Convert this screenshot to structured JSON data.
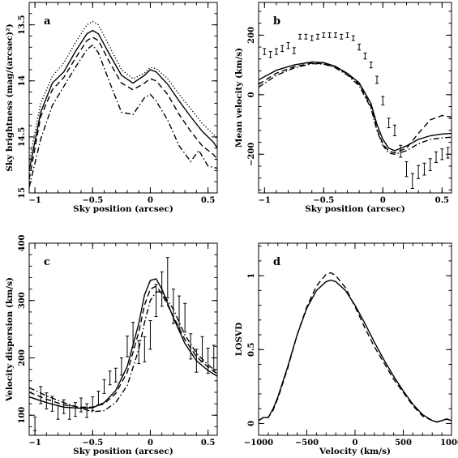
{
  "chart_data": [
    {
      "panel": "a",
      "type": "line",
      "xlabel": "Sky position (arcsec)",
      "ylabel": "Sky brightness (mag/(arcsec)²)",
      "xlim": [
        -1.05,
        0.58
      ],
      "ylim": [
        15.0,
        13.3
      ],
      "y_reversed": true,
      "xticks": [
        -1,
        -0.5,
        0,
        0.5
      ],
      "yticks": [
        13.5,
        14,
        14.5,
        15
      ],
      "xticklabels": [
        "−1",
        "−0.5",
        "0",
        "0.5"
      ],
      "yticklabels": [
        "13.5",
        "14",
        "14.5",
        "15"
      ],
      "series": [
        {
          "style": "solid",
          "x": [
            -1.05,
            -0.95,
            -0.85,
            -0.75,
            -0.65,
            -0.55,
            -0.5,
            -0.45,
            -0.35,
            -0.25,
            -0.15,
            -0.05,
            0,
            0.05,
            0.15,
            0.25,
            0.35,
            0.45,
            0.55,
            0.58
          ],
          "y": [
            14.8,
            14.28,
            14.02,
            13.92,
            13.74,
            13.58,
            13.55,
            13.58,
            13.77,
            13.95,
            14.02,
            13.95,
            13.9,
            13.92,
            14.03,
            14.18,
            14.32,
            14.45,
            14.55,
            14.6
          ]
        },
        {
          "style": "dotted",
          "x": [
            -1.05,
            -0.95,
            -0.85,
            -0.75,
            -0.65,
            -0.55,
            -0.5,
            -0.45,
            -0.35,
            -0.25,
            -0.15,
            -0.05,
            0,
            0.05,
            0.15,
            0.25,
            0.35,
            0.45,
            0.55,
            0.58
          ],
          "y": [
            14.72,
            14.2,
            13.96,
            13.84,
            13.66,
            13.5,
            13.47,
            13.5,
            13.7,
            13.9,
            13.98,
            13.93,
            13.88,
            13.89,
            13.98,
            14.12,
            14.25,
            14.38,
            14.48,
            14.52
          ]
        },
        {
          "style": "dashed",
          "x": [
            -1.05,
            -0.95,
            -0.85,
            -0.75,
            -0.65,
            -0.55,
            -0.5,
            -0.45,
            -0.35,
            -0.25,
            -0.15,
            -0.05,
            0,
            0.05,
            0.15,
            0.25,
            0.35,
            0.45,
            0.55,
            0.58
          ],
          "y": [
            14.88,
            14.32,
            14.08,
            13.97,
            13.8,
            13.64,
            13.61,
            13.64,
            13.84,
            14.02,
            14.08,
            14.02,
            13.98,
            14.0,
            14.12,
            14.3,
            14.45,
            14.58,
            14.66,
            14.7
          ]
        },
        {
          "style": "dashdot",
          "x": [
            -1.05,
            -0.95,
            -0.85,
            -0.75,
            -0.65,
            -0.55,
            -0.5,
            -0.45,
            -0.35,
            -0.25,
            -0.15,
            -0.05,
            0,
            0.05,
            0.15,
            0.25,
            0.35,
            0.42,
            0.5,
            0.58
          ],
          "y": [
            14.95,
            14.52,
            14.22,
            14.05,
            13.88,
            13.72,
            13.68,
            13.75,
            14.02,
            14.28,
            14.3,
            14.15,
            14.12,
            14.18,
            14.35,
            14.58,
            14.72,
            14.62,
            14.76,
            14.78
          ]
        }
      ]
    },
    {
      "panel": "b",
      "type": "line",
      "xlabel": "Sky position (arcsec)",
      "ylabel": "Mean velocity (km/s)",
      "xlim": [
        -1.05,
        0.58
      ],
      "ylim": [
        -330,
        310
      ],
      "xticks": [
        -1,
        -0.5,
        0,
        0.5
      ],
      "yticks": [
        -200,
        0,
        200
      ],
      "xticklabels": [
        "−1",
        "−0.5",
        "0",
        "0.5"
      ],
      "yticklabels": [
        "−200",
        "0",
        "200"
      ],
      "series": [
        {
          "style": "solid",
          "x": [
            -1.05,
            -0.9,
            -0.75,
            -0.6,
            -0.5,
            -0.4,
            -0.3,
            -0.2,
            -0.1,
            -0.05,
            0,
            0.05,
            0.1,
            0.2,
            0.3,
            0.4,
            0.5,
            0.58
          ],
          "y": [
            50,
            82,
            100,
            110,
            108,
            95,
            72,
            40,
            -30,
            -100,
            -150,
            -180,
            -188,
            -172,
            -150,
            -138,
            -132,
            -130
          ]
        },
        {
          "style": "dashed",
          "x": [
            -1.05,
            -0.9,
            -0.75,
            -0.6,
            -0.5,
            -0.4,
            -0.3,
            -0.2,
            -0.1,
            -0.05,
            0,
            0.05,
            0.1,
            0.2,
            0.3,
            0.4,
            0.5,
            0.58
          ],
          "y": [
            35,
            72,
            94,
            106,
            104,
            92,
            70,
            35,
            -40,
            -115,
            -165,
            -190,
            -195,
            -180,
            -130,
            -85,
            -70,
            -75
          ]
        },
        {
          "style": "dashdot",
          "x": [
            -1.05,
            -0.9,
            -0.75,
            -0.6,
            -0.5,
            -0.4,
            -0.3,
            -0.2,
            -0.1,
            -0.05,
            0,
            0.05,
            0.1,
            0.2,
            0.3,
            0.4,
            0.5,
            0.58
          ],
          "y": [
            25,
            65,
            90,
            104,
            103,
            90,
            66,
            30,
            -45,
            -120,
            -170,
            -196,
            -200,
            -188,
            -165,
            -150,
            -145,
            -143
          ]
        }
      ],
      "points": {
        "x": [
          -1.0,
          -0.95,
          -0.9,
          -0.85,
          -0.8,
          -0.75,
          -0.7,
          -0.65,
          -0.6,
          -0.55,
          -0.5,
          -0.45,
          -0.4,
          -0.35,
          -0.3,
          -0.25,
          -0.2,
          -0.15,
          -0.1,
          -0.05,
          0.0,
          0.05,
          0.1,
          0.15,
          0.2,
          0.25,
          0.3,
          0.35,
          0.4,
          0.45,
          0.5,
          0.55
        ],
        "y": [
          145,
          135,
          145,
          155,
          165,
          148,
          195,
          195,
          190,
          195,
          200,
          200,
          200,
          195,
          200,
          190,
          160,
          130,
          100,
          50,
          -20,
          -95,
          -120,
          -190,
          -250,
          -290,
          -260,
          -250,
          -235,
          -210,
          -200,
          -195
        ],
        "err": [
          10,
          10,
          10,
          10,
          10,
          10,
          8,
          8,
          8,
          8,
          8,
          8,
          8,
          8,
          8,
          8,
          10,
          10,
          10,
          12,
          14,
          16,
          18,
          20,
          25,
          25,
          22,
          20,
          20,
          18,
          18,
          18
        ]
      }
    },
    {
      "panel": "c",
      "type": "line",
      "xlabel": "Sky position (arcsec)",
      "ylabel": "Velocity dispersion (km/s)",
      "xlim": [
        -1.05,
        0.58
      ],
      "ylim": [
        65,
        400
      ],
      "xticks": [
        -1,
        -0.5,
        0,
        0.5
      ],
      "yticks": [
        100,
        200,
        300,
        400
      ],
      "xticklabels": [
        "−1",
        "−0.5",
        "0",
        "0.5"
      ],
      "yticklabels": [
        "100",
        "200",
        "300",
        "400"
      ],
      "series": [
        {
          "style": "solid",
          "x": [
            -1.05,
            -0.9,
            -0.75,
            -0.6,
            -0.5,
            -0.4,
            -0.3,
            -0.2,
            -0.1,
            -0.05,
            0,
            0.05,
            0.1,
            0.2,
            0.3,
            0.4,
            0.5,
            0.58
          ],
          "y": [
            132,
            122,
            114,
            112,
            113,
            122,
            143,
            185,
            260,
            310,
            335,
            338,
            320,
            270,
            225,
            195,
            178,
            168
          ]
        },
        {
          "style": "dashed",
          "x": [
            -1.05,
            -0.9,
            -0.75,
            -0.6,
            -0.5,
            -0.4,
            -0.3,
            -0.2,
            -0.1,
            -0.05,
            0,
            0.05,
            0.1,
            0.2,
            0.3,
            0.4,
            0.5,
            0.58
          ],
          "y": [
            140,
            128,
            118,
            114,
            114,
            120,
            138,
            175,
            245,
            292,
            320,
            325,
            312,
            272,
            232,
            202,
            184,
            172
          ]
        },
        {
          "style": "dashdot",
          "x": [
            -1.05,
            -0.9,
            -0.75,
            -0.6,
            -0.5,
            -0.4,
            -0.3,
            -0.2,
            -0.1,
            -0.05,
            0,
            0.05,
            0.1,
            0.2,
            0.3,
            0.4,
            0.5,
            0.58
          ],
          "y": [
            148,
            134,
            122,
            112,
            106,
            108,
            122,
            152,
            215,
            262,
            300,
            315,
            315,
            285,
            240,
            208,
            188,
            175
          ]
        }
      ],
      "points": {
        "x": [
          -1.0,
          -0.95,
          -0.9,
          -0.85,
          -0.8,
          -0.75,
          -0.7,
          -0.65,
          -0.6,
          -0.55,
          -0.5,
          -0.45,
          -0.4,
          -0.35,
          -0.3,
          -0.25,
          -0.2,
          -0.15,
          -0.1,
          -0.05,
          0.0,
          0.05,
          0.1,
          0.15,
          0.2,
          0.25,
          0.3,
          0.35,
          0.4,
          0.45,
          0.5,
          0.55
        ],
        "y": [
          85,
          135,
          125,
          120,
          105,
          115,
          105,
          110,
          118,
          108,
          120,
          130,
          150,
          165,
          170,
          185,
          220,
          240,
          210,
          215,
          240,
          300,
          320,
          340,
          290,
          280,
          270,
          220,
          195,
          215,
          195,
          200
        ],
        "err": [
          12,
          15,
          14,
          13,
          12,
          12,
          12,
          12,
          12,
          12,
          12,
          12,
          12,
          12,
          12,
          15,
          18,
          22,
          20,
          22,
          25,
          28,
          30,
          35,
          30,
          28,
          25,
          22,
          20,
          22,
          22,
          22
        ]
      }
    },
    {
      "panel": "d",
      "type": "line",
      "xlabel": "Velocity (km/s)",
      "ylabel": "LOSVD",
      "xlim": [
        -1000,
        1000
      ],
      "ylim": [
        -0.08,
        1.22
      ],
      "xticks": [
        -1000,
        -500,
        0,
        500,
        1000
      ],
      "yticks": [
        0,
        0.5,
        1
      ],
      "xticklabels": [
        "−1000",
        "−500",
        "0",
        "500",
        "1000"
      ],
      "yticklabels": [
        "0",
        "0.5",
        "1"
      ],
      "series": [
        {
          "style": "solid",
          "x": [
            -1000,
            -950,
            -900,
            -850,
            -800,
            -700,
            -600,
            -500,
            -400,
            -300,
            -250,
            -200,
            -100,
            0,
            100,
            200,
            300,
            400,
            500,
            600,
            700,
            800,
            850,
            900,
            950,
            1000
          ],
          "y": [
            0.02,
            0.04,
            0.04,
            0.1,
            0.18,
            0.38,
            0.6,
            0.78,
            0.9,
            0.96,
            0.97,
            0.96,
            0.9,
            0.8,
            0.68,
            0.55,
            0.43,
            0.32,
            0.22,
            0.13,
            0.06,
            0.02,
            0.01,
            0.02,
            0.03,
            0.02
          ]
        },
        {
          "style": "dashed",
          "x": [
            -1000,
            -950,
            -900,
            -850,
            -800,
            -700,
            -600,
            -500,
            -400,
            -300,
            -250,
            -200,
            -100,
            0,
            100,
            200,
            300,
            400,
            500,
            600,
            700,
            800,
            850,
            900,
            950,
            1000
          ],
          "y": [
            0.02,
            0.04,
            0.04,
            0.09,
            0.17,
            0.37,
            0.6,
            0.79,
            0.93,
            1.01,
            1.02,
            1.0,
            0.92,
            0.79,
            0.65,
            0.52,
            0.41,
            0.3,
            0.21,
            0.12,
            0.05,
            0.02,
            0.01,
            0.02,
            0.03,
            0.02
          ]
        }
      ]
    }
  ]
}
